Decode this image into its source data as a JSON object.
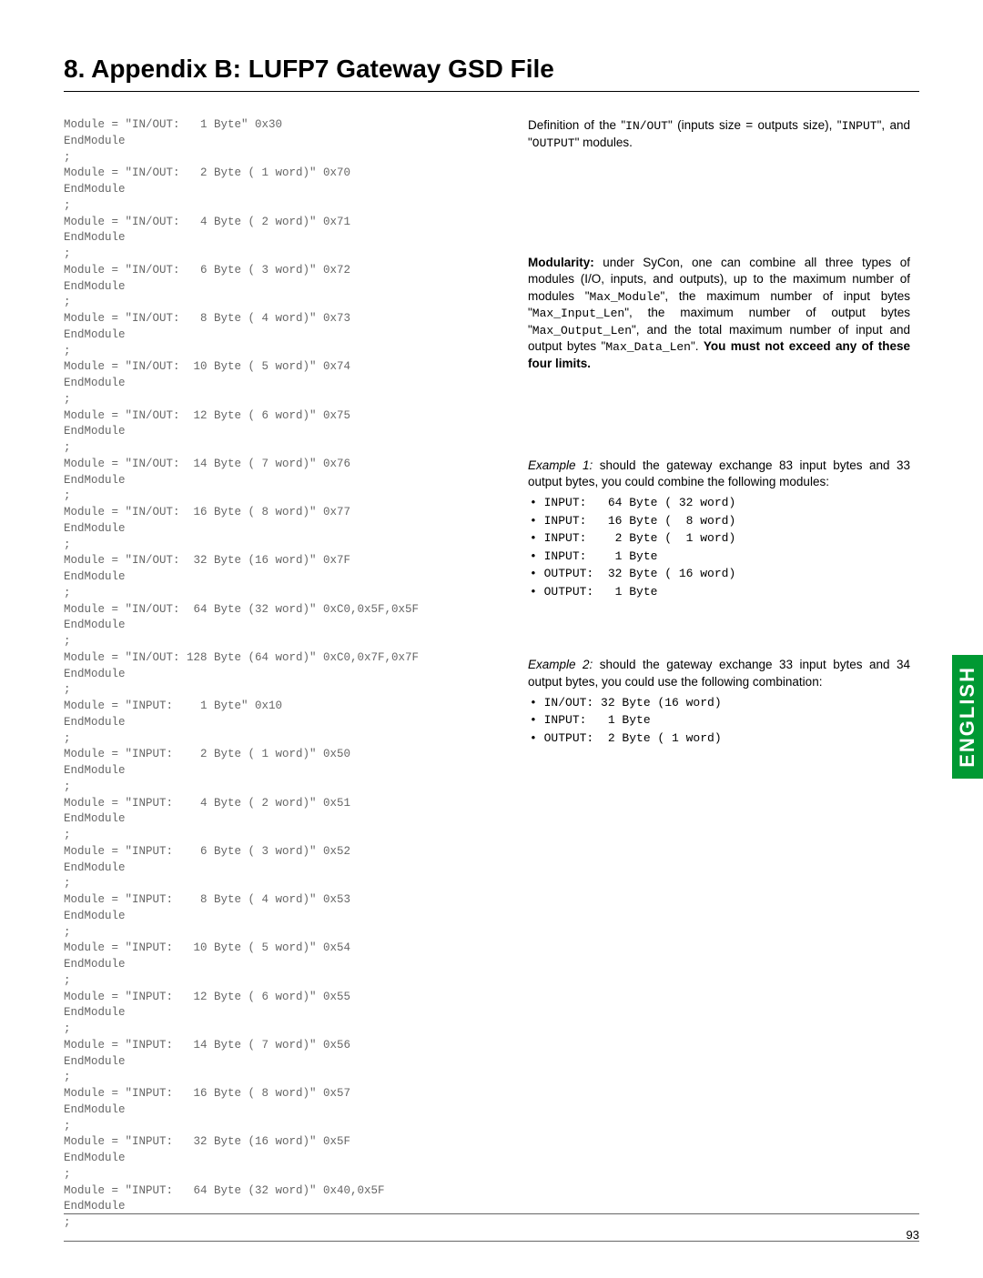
{
  "title": "8. Appendix B: LUFP7 Gateway GSD File",
  "code_lines": [
    "Module = \"IN/OUT:   1 Byte\" 0x30",
    "EndModule",
    ";",
    "Module = \"IN/OUT:   2 Byte ( 1 word)\" 0x70",
    "EndModule",
    ";",
    "Module = \"IN/OUT:   4 Byte ( 2 word)\" 0x71",
    "EndModule",
    ";",
    "Module = \"IN/OUT:   6 Byte ( 3 word)\" 0x72",
    "EndModule",
    ";",
    "Module = \"IN/OUT:   8 Byte ( 4 word)\" 0x73",
    "EndModule",
    ";",
    "Module = \"IN/OUT:  10 Byte ( 5 word)\" 0x74",
    "EndModule",
    ";",
    "Module = \"IN/OUT:  12 Byte ( 6 word)\" 0x75",
    "EndModule",
    ";",
    "Module = \"IN/OUT:  14 Byte ( 7 word)\" 0x76",
    "EndModule",
    ";",
    "Module = \"IN/OUT:  16 Byte ( 8 word)\" 0x77",
    "EndModule",
    ";",
    "Module = \"IN/OUT:  32 Byte (16 word)\" 0x7F",
    "EndModule",
    ";",
    "Module = \"IN/OUT:  64 Byte (32 word)\" 0xC0,0x5F,0x5F",
    "EndModule",
    ";",
    "Module = \"IN/OUT: 128 Byte (64 word)\" 0xC0,0x7F,0x7F",
    "EndModule",
    ";",
    "Module = \"INPUT:    1 Byte\" 0x10",
    "EndModule",
    ";",
    "Module = \"INPUT:    2 Byte ( 1 word)\" 0x50",
    "EndModule",
    ";",
    "Module = \"INPUT:    4 Byte ( 2 word)\" 0x51",
    "EndModule",
    ";",
    "Module = \"INPUT:    6 Byte ( 3 word)\" 0x52",
    "EndModule",
    ";",
    "Module = \"INPUT:    8 Byte ( 4 word)\" 0x53",
    "EndModule",
    ";",
    "Module = \"INPUT:   10 Byte ( 5 word)\" 0x54",
    "EndModule",
    ";",
    "Module = \"INPUT:   12 Byte ( 6 word)\" 0x55",
    "EndModule",
    ";",
    "Module = \"INPUT:   14 Byte ( 7 word)\" 0x56",
    "EndModule",
    ";",
    "Module = \"INPUT:   16 Byte ( 8 word)\" 0x57",
    "EndModule",
    ";",
    "Module = \"INPUT:   32 Byte (16 word)\" 0x5F",
    "EndModule",
    ";",
    "Module = \"INPUT:   64 Byte (32 word)\" 0x40,0x5F",
    "EndModule",
    ";"
  ],
  "definition": {
    "prefix": "Definition of the \"",
    "m1": "IN/OUT",
    "mid1": "\" (inputs size = outputs size), \"",
    "m2": "INPUT",
    "mid2": "\", and \"",
    "m3": "OUTPUT",
    "suffix": "\" modules."
  },
  "modularity": {
    "heading": "Modularity:",
    "text1": " under SyCon, one can combine all three types of modules (I/O, inputs, and outputs), up to the maximum number of modules \"",
    "maxmodule": "Max_Module",
    "text2": "\", the maximum number of input bytes \"",
    "maxinput": "Max_Input_Len",
    "text3": "\", the maximum number of output bytes \"",
    "maxoutput": "Max_Output_Len",
    "text4": "\", and the total maximum number of input and output bytes \"",
    "maxdata": "Max_Data_Len",
    "text5": "\". ",
    "bold_text": "You must not exceed any of these four limits."
  },
  "example1": {
    "heading": "Example 1:",
    "text": " should the gateway exchange 83 input bytes and 33 output bytes, you could combine the following modules:",
    "items": [
      "INPUT:   64 Byte ( 32 word)",
      "INPUT:   16 Byte (  8 word)",
      "INPUT:    2 Byte (  1 word)",
      "INPUT:    1 Byte",
      "OUTPUT:  32 Byte ( 16 word)",
      "OUTPUT:   1 Byte"
    ]
  },
  "example2": {
    "heading": "Example 2:",
    "text": " should the gateway exchange 33 input bytes and 34 output bytes, you could use the following combination:",
    "items": [
      "IN/OUT: 32 Byte (16 word)",
      "INPUT:   1 Byte",
      "OUTPUT:  2 Byte ( 1 word)"
    ]
  },
  "tab_label": "ENGLISH",
  "page_number": "93"
}
